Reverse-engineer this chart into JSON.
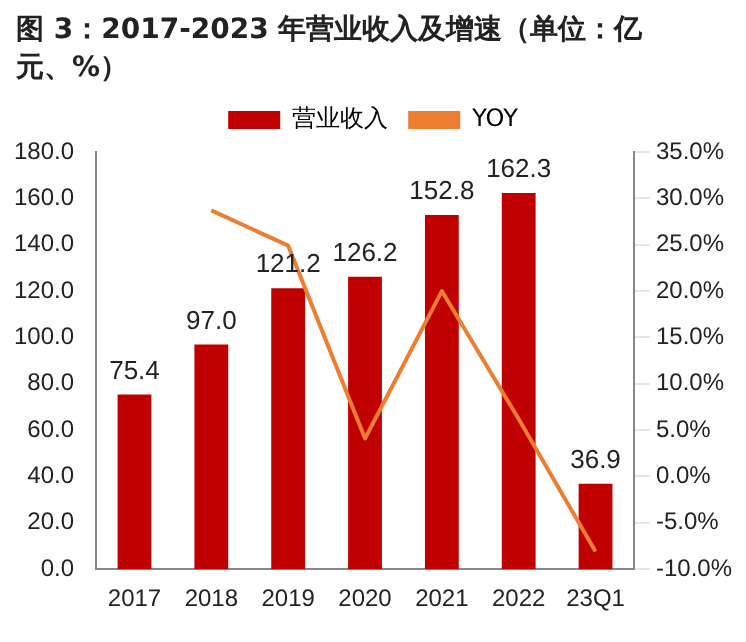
{
  "chart_data": {
    "type": "bar",
    "title": "图 3：2017-2023 年营业收入及增速（单位：亿元、%）",
    "categories": [
      "2017",
      "2018",
      "2019",
      "2020",
      "2021",
      "2022",
      "23Q1"
    ],
    "series": [
      {
        "name": "营业收入",
        "color": "#c00000",
        "values": [
          75.4,
          97.0,
          121.2,
          126.2,
          152.8,
          162.3,
          36.9
        ],
        "value_labels": [
          "75.4",
          "97.0",
          "121.2",
          "126.2",
          "152.8",
          "162.3",
          "36.9"
        ]
      },
      {
        "name": "YOY",
        "type": "line",
        "axis": "y2",
        "color": "#ed7d31",
        "values": [
          null,
          28.7,
          24.9,
          4.1,
          20.0,
          6.2,
          -8.1
        ]
      }
    ],
    "ylim": [
      0,
      180
    ],
    "yticks": [
      {
        "value": 0,
        "label": "0.0"
      },
      {
        "value": 20,
        "label": "20.0"
      },
      {
        "value": 40,
        "label": "40.0"
      },
      {
        "value": 60,
        "label": "60.0"
      },
      {
        "value": 80,
        "label": "80.0"
      },
      {
        "value": 100,
        "label": "100.0"
      },
      {
        "value": 120,
        "label": "120.0"
      },
      {
        "value": 140,
        "label": "140.0"
      },
      {
        "value": 160,
        "label": "160.0"
      },
      {
        "value": 180,
        "label": "180.0"
      }
    ],
    "y2lim": [
      -10,
      35
    ],
    "y2ticks": [
      {
        "value": -10,
        "label": "-10.0%"
      },
      {
        "value": -5,
        "label": "-5.0%"
      },
      {
        "value": 0,
        "label": "0.0%"
      },
      {
        "value": 5,
        "label": "5.0%"
      },
      {
        "value": 10,
        "label": "10.0%"
      },
      {
        "value": 15,
        "label": "15.0%"
      },
      {
        "value": 20,
        "label": "20.0%"
      },
      {
        "value": 25,
        "label": "25.0%"
      },
      {
        "value": 30,
        "label": "30.0%"
      },
      {
        "value": 35,
        "label": "35.0%"
      }
    ],
    "grid": false,
    "legend": "top",
    "marker": "none"
  }
}
